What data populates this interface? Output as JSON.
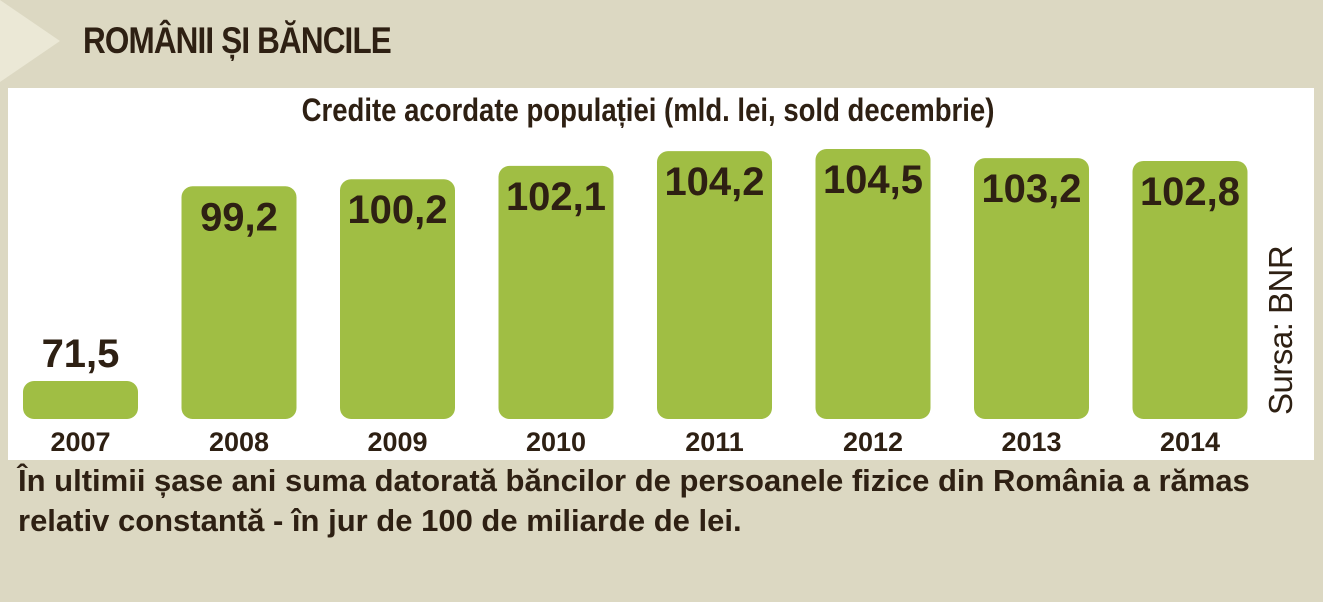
{
  "header": {
    "title": "ROMÂNII ȘI BĂNCILE"
  },
  "chart_data": {
    "type": "bar",
    "title": "Credite acordate populației (mld. lei, sold decembrie)",
    "categories": [
      "2007",
      "2008",
      "2009",
      "2010",
      "2011",
      "2012",
      "2013",
      "2014"
    ],
    "values": [
      71.5,
      99.2,
      100.2,
      102.1,
      104.2,
      104.5,
      103.2,
      102.8
    ],
    "value_labels": [
      "71,5",
      "99,2",
      "100,2",
      "102,1",
      "104,2",
      "104,5",
      "103,2",
      "102,8"
    ],
    "bar_color": "#a0be44",
    "source": "Sursa: BNR"
  },
  "caption": "În ultimii șase ani suma datorată băncilor de persoanele fizice din România a rămas relativ constantă - în jur de 100 de miliarde de lei."
}
